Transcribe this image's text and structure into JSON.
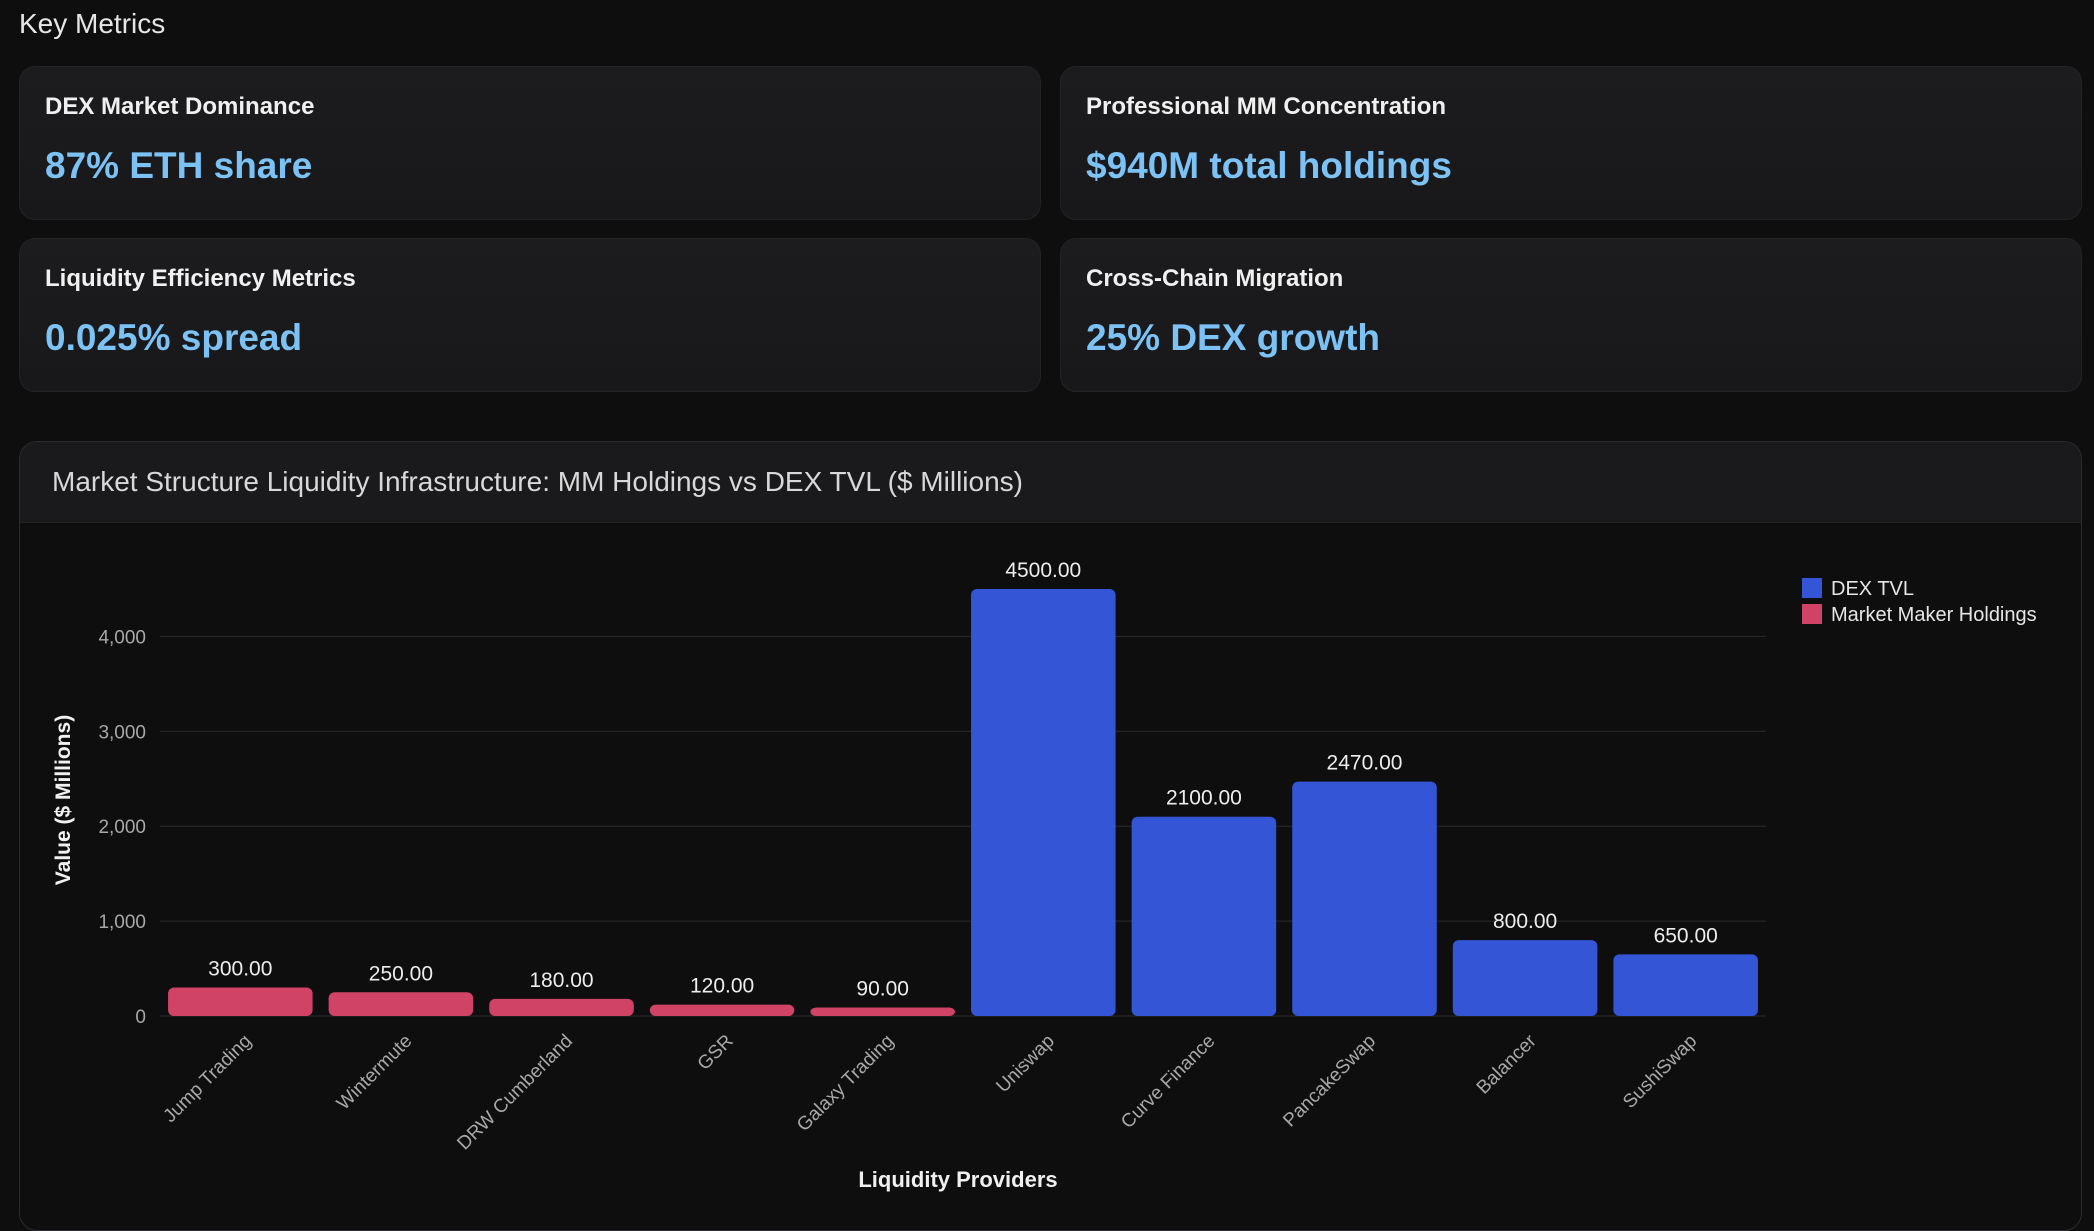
{
  "page": {
    "section_title": "Key Metrics"
  },
  "metrics": [
    {
      "label": "DEX Market Dominance",
      "value": "87% ETH share"
    },
    {
      "label": "Professional MM Concentration",
      "value": "$940M total holdings"
    },
    {
      "label": "Liquidity Efficiency Metrics",
      "value": "0.025% spread"
    },
    {
      "label": "Cross-Chain Migration",
      "value": "25% DEX growth"
    }
  ],
  "colors": {
    "accent_value": "#7cc2f4",
    "dex_tvl": "#3355d6",
    "market_maker": "#d04266"
  },
  "chart_data": {
    "type": "bar",
    "title": "Market Structure Liquidity Infrastructure: MM Holdings vs DEX TVL ($ Millions)",
    "xlabel": "Liquidity Providers",
    "ylabel": "Value ($ Millions)",
    "ylim": [
      0,
      4500
    ],
    "yticks": [
      0,
      1000,
      2000,
      3000,
      4000
    ],
    "ytick_labels": [
      "0",
      "1,000",
      "2,000",
      "3,000",
      "4,000"
    ],
    "grid": true,
    "legend_position": "top-right",
    "categories": [
      "Jump Trading",
      "Wintermute",
      "DRW Cumberland",
      "GSR",
      "Galaxy Trading",
      "Uniswap",
      "Curve Finance",
      "PancakeSwap",
      "Balancer",
      "SushiSwap"
    ],
    "series": [
      {
        "name": "DEX TVL",
        "color": "#3355d6",
        "values": [
          null,
          null,
          null,
          null,
          null,
          4500,
          2100,
          2470,
          800,
          650
        ]
      },
      {
        "name": "Market Maker Holdings",
        "color": "#d04266",
        "values": [
          300,
          250,
          180,
          120,
          90,
          null,
          null,
          null,
          null,
          null
        ]
      }
    ],
    "data_labels": [
      "300.00",
      "250.00",
      "180.00",
      "120.00",
      "90.00",
      "4500.00",
      "2100.00",
      "2470.00",
      "800.00",
      "650.00"
    ]
  }
}
